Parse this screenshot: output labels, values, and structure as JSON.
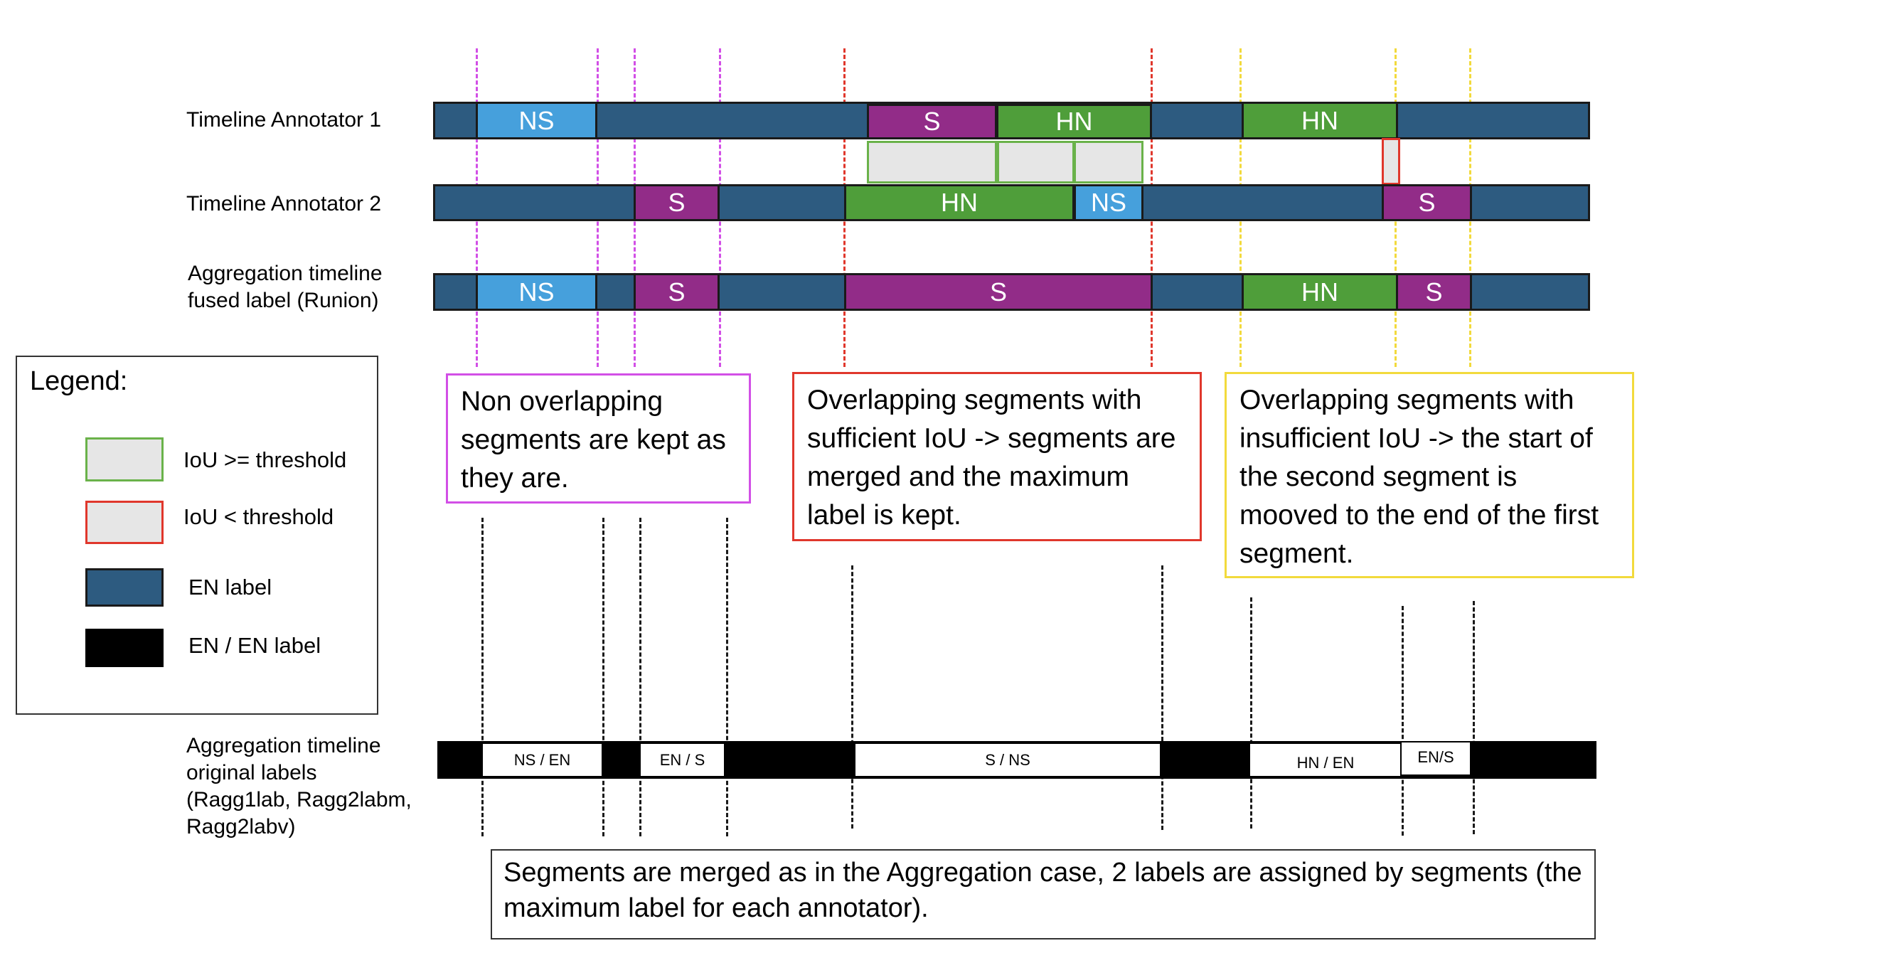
{
  "rows": {
    "annotator1": "Timeline Annotator 1",
    "annotator2": "Timeline Annotator 2",
    "aggregation": "Aggregation timeline\nfused label (Runion)",
    "original": "Aggregation timeline\noriginal labels\n(Ragg1lab, Ragg2labm,\nRagg2labv)"
  },
  "annotator1_segments": [
    "NS",
    "S",
    "HN",
    "HN"
  ],
  "annotator2_segments": [
    "S",
    "HN",
    "NS",
    "S"
  ],
  "fused_segments": [
    "NS",
    "S",
    "S",
    "HN",
    "S"
  ],
  "original_segments": [
    "NS / EN",
    "EN / S",
    "S / NS",
    "HN / EN",
    "EN/S"
  ],
  "notes": {
    "non_overlap": "Non overlapping\nsegments are kept\nas they are.",
    "sufficient_iou": "Overlapping segments with\nsufficient IoU -> segments\nare merged and the\nmaximum label is kept.",
    "insufficient_iou": "Overlapping segments with\ninsufficient IoU -> the start\nof the second segment is\nmooved to the end of the\nfirst segment.",
    "bottom": "Segments are merged as in the Aggregation case, 2 labels are assigned by\nsegments (the maximum label for each annotator)."
  },
  "legend": {
    "title": "Legend:",
    "iou_ok": "IoU >= threshold",
    "iou_bad": "IoU < threshold",
    "en": "EN label",
    "en_en": "EN / EN label"
  },
  "colors": {
    "en": "#2d5b80",
    "ns": "#46a0dc",
    "s": "#922c88",
    "hn": "#4f9e3a",
    "iou_ok_border": "#6ab24a",
    "iou_bad_border": "#e0372c",
    "non_overlap": "#d24fe6",
    "sufficient": "#e0372c",
    "insufficient": "#f2da3c"
  }
}
